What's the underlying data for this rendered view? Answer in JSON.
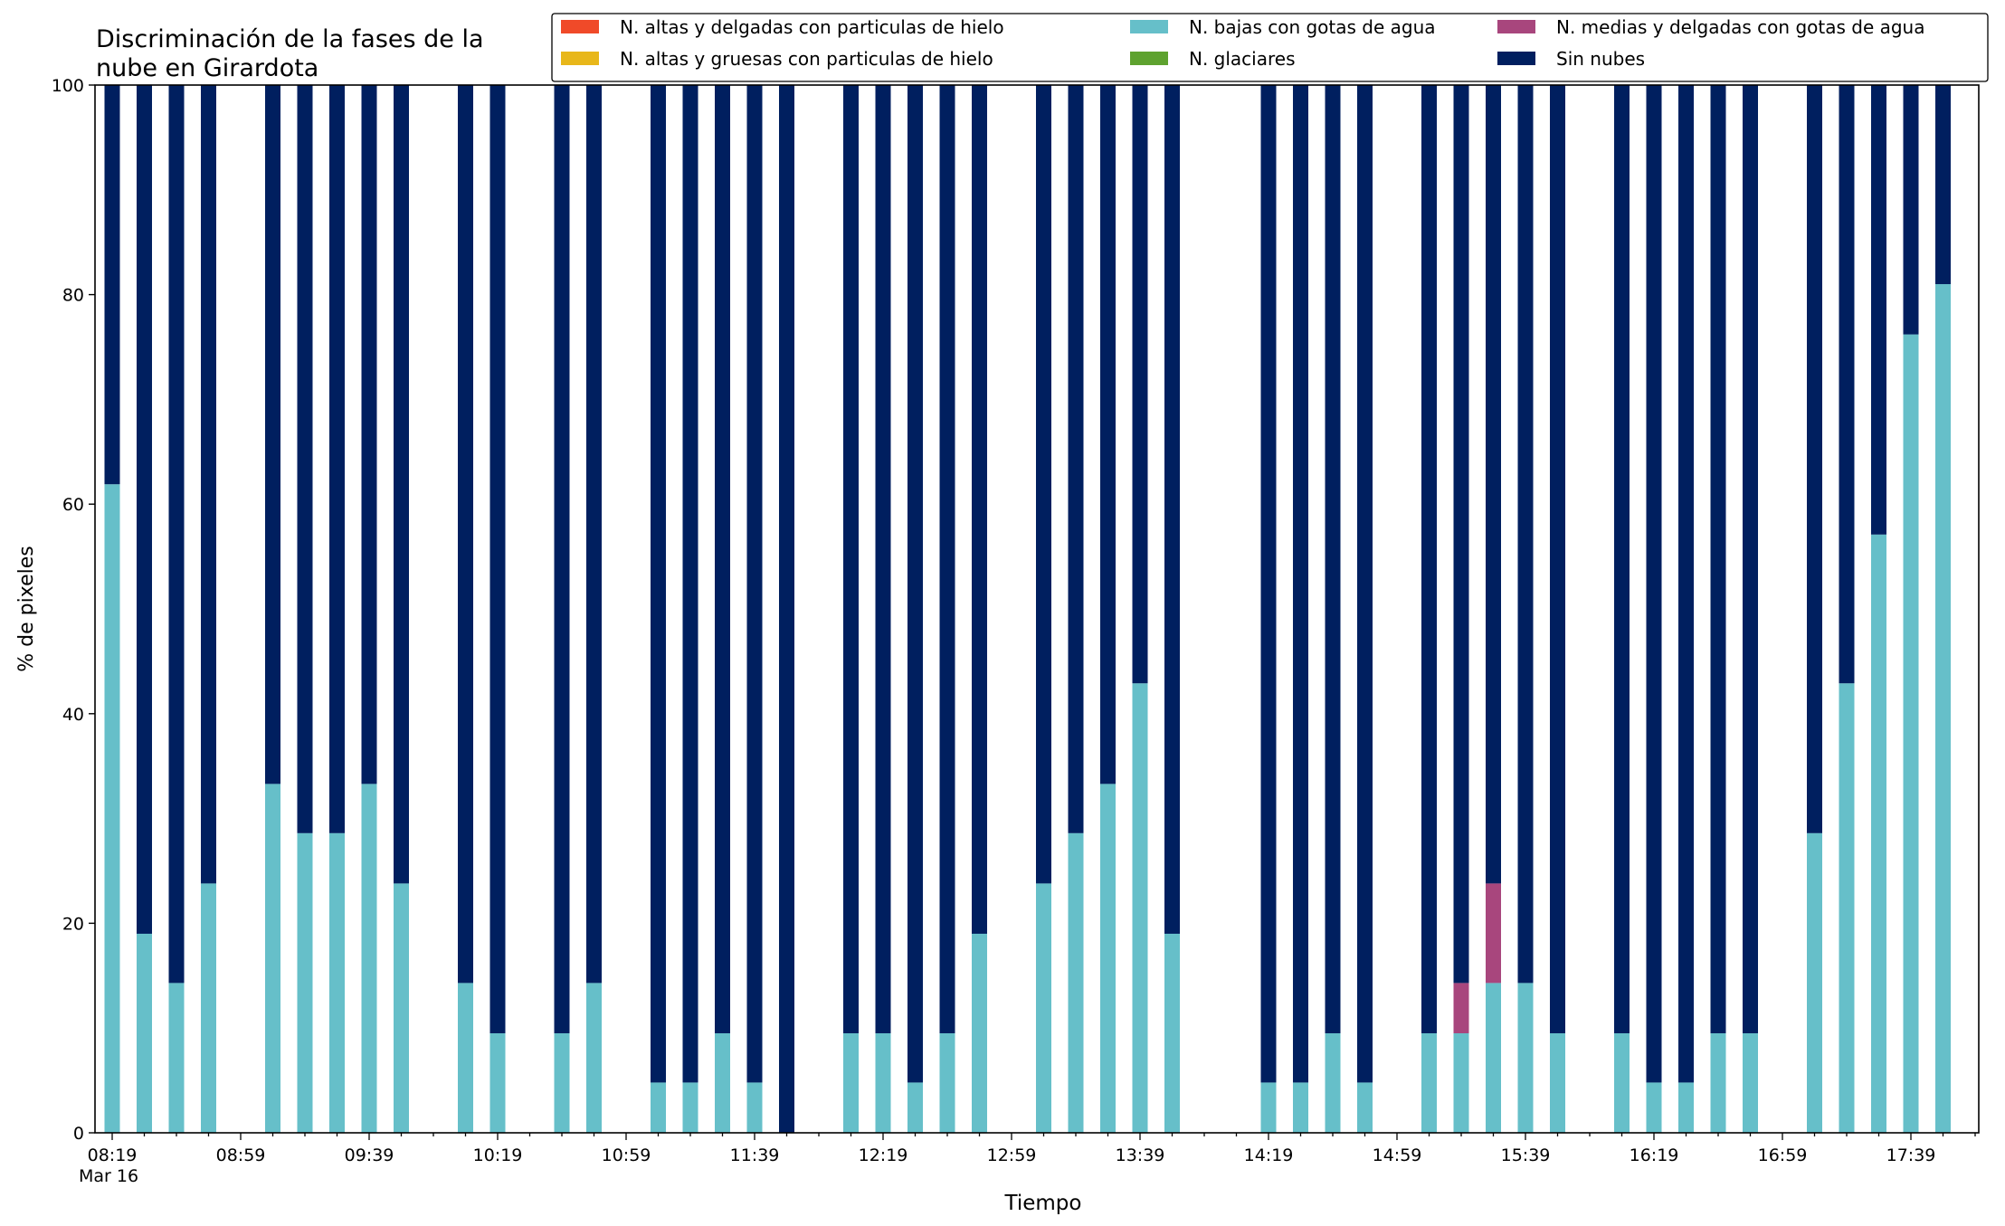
{
  "chart_data": {
    "type": "bar",
    "stacked": true,
    "title": "Discriminación de la fases de la\nnube en Girardota",
    "xlabel": "Tiempo",
    "ylabel": "% de pixeles",
    "ylim": [
      0,
      100
    ],
    "yticks": [
      0,
      20,
      40,
      60,
      80,
      100
    ],
    "grid": false,
    "legend_placement": "top-right",
    "date_label": "Mar 16",
    "x_start": "08:19",
    "x_end": "17:59",
    "x_step_minutes": 10,
    "xticks": [
      "08:19",
      "08:59",
      "09:39",
      "10:19",
      "10:59",
      "11:39",
      "12:19",
      "12:59",
      "13:39",
      "14:19",
      "14:59",
      "15:39",
      "16:19",
      "16:59",
      "17:39"
    ],
    "categories": [
      "08:19",
      "08:29",
      "08:39",
      "08:49",
      "08:59",
      "09:09",
      "09:19",
      "09:29",
      "09:39",
      "09:49",
      "09:59",
      "10:09",
      "10:19",
      "10:29",
      "10:39",
      "10:49",
      "10:59",
      "11:09",
      "11:19",
      "11:29",
      "11:39",
      "11:49",
      "11:59",
      "12:09",
      "12:19",
      "12:29",
      "12:39",
      "12:49",
      "12:59",
      "13:09",
      "13:19",
      "13:29",
      "13:39",
      "13:49",
      "13:59",
      "14:09",
      "14:19",
      "14:29",
      "14:39",
      "14:49",
      "14:59",
      "15:09",
      "15:19",
      "15:29",
      "15:39",
      "15:49",
      "15:59",
      "16:09",
      "16:19",
      "16:29",
      "16:39",
      "16:49",
      "16:59",
      "17:09",
      "17:19",
      "17:29",
      "17:39",
      "17:49",
      "17:59"
    ],
    "series": [
      {
        "name": "N. altas y delgadas con particulas de hielo",
        "color": "#f04a29",
        "values": [
          0,
          0,
          0,
          0,
          null,
          0,
          0,
          0,
          0,
          0,
          null,
          0,
          0,
          null,
          0,
          0,
          null,
          0,
          0,
          0,
          0,
          0,
          null,
          0,
          0,
          0,
          0,
          0,
          null,
          0,
          0,
          0,
          0,
          0,
          null,
          null,
          0,
          0,
          0,
          0,
          null,
          0,
          0,
          0,
          0,
          0,
          null,
          0,
          0,
          0,
          0,
          0,
          null,
          0,
          0,
          0,
          0,
          0,
          null
        ]
      },
      {
        "name": "N. altas y gruesas con particulas de hielo",
        "color": "#e8b71a",
        "values": [
          0,
          0,
          0,
          0,
          null,
          0,
          0,
          0,
          0,
          0,
          null,
          0,
          0,
          null,
          0,
          0,
          null,
          0,
          0,
          0,
          0,
          0,
          null,
          0,
          0,
          0,
          0,
          0,
          null,
          0,
          0,
          0,
          0,
          0,
          null,
          null,
          0,
          0,
          0,
          0,
          null,
          0,
          0,
          0,
          0,
          0,
          null,
          0,
          0,
          0,
          0,
          0,
          null,
          0,
          0,
          0,
          0,
          0,
          null
        ]
      },
      {
        "name": "N. bajas con gotas de agua",
        "color": "#66bfc9",
        "values": [
          61.9,
          19.0,
          14.3,
          23.8,
          null,
          33.3,
          28.6,
          28.6,
          33.3,
          23.8,
          null,
          14.3,
          9.5,
          null,
          9.5,
          14.3,
          null,
          4.8,
          4.8,
          9.5,
          4.8,
          0,
          null,
          9.5,
          9.5,
          4.8,
          9.5,
          19.0,
          null,
          23.8,
          28.6,
          33.3,
          42.9,
          19.0,
          null,
          null,
          4.8,
          4.8,
          9.5,
          4.8,
          null,
          9.5,
          9.5,
          14.3,
          14.3,
          9.5,
          null,
          9.5,
          4.8,
          4.8,
          9.5,
          9.5,
          null,
          28.6,
          42.9,
          57.1,
          76.2,
          81.0,
          null
        ]
      },
      {
        "name": "N. glaciares",
        "color": "#5ea22f",
        "values": [
          0,
          0,
          0,
          0,
          null,
          0,
          0,
          0,
          0,
          0,
          null,
          0,
          0,
          null,
          0,
          0,
          null,
          0,
          0,
          0,
          0,
          0,
          null,
          0,
          0,
          0,
          0,
          0,
          null,
          0,
          0,
          0,
          0,
          0,
          null,
          null,
          0,
          0,
          0,
          0,
          null,
          0,
          0,
          0,
          0,
          0,
          null,
          0,
          0,
          0,
          0,
          0,
          null,
          0,
          0,
          0,
          0,
          0,
          null
        ]
      },
      {
        "name": "N. medias y delgadas con gotas de agua",
        "color": "#a8467d",
        "values": [
          0,
          0,
          0,
          0,
          null,
          0,
          0,
          0,
          0,
          0,
          null,
          0,
          0,
          null,
          0,
          0,
          null,
          0,
          0,
          0,
          0,
          0,
          null,
          0,
          0,
          0,
          0,
          0,
          null,
          0,
          0,
          0,
          0,
          0,
          null,
          null,
          0,
          0,
          0,
          0,
          null,
          0,
          4.8,
          9.5,
          0,
          0,
          null,
          0,
          0,
          0,
          0,
          0,
          null,
          0,
          0,
          0,
          0,
          0,
          null
        ]
      },
      {
        "name": "Sin nubes",
        "color": "#001f5f",
        "values": [
          38.1,
          81.0,
          85.7,
          76.2,
          null,
          66.7,
          71.4,
          71.4,
          66.7,
          76.2,
          null,
          85.7,
          90.5,
          null,
          90.5,
          85.7,
          null,
          95.2,
          95.2,
          90.5,
          95.2,
          100,
          null,
          90.5,
          90.5,
          95.2,
          90.5,
          81.0,
          null,
          76.2,
          71.4,
          66.7,
          57.1,
          81.0,
          null,
          null,
          95.2,
          95.2,
          90.5,
          95.2,
          null,
          90.5,
          85.7,
          76.2,
          85.7,
          90.5,
          null,
          90.5,
          95.2,
          95.2,
          90.5,
          90.5,
          null,
          71.4,
          57.1,
          42.9,
          23.8,
          19.0,
          null
        ]
      }
    ]
  }
}
